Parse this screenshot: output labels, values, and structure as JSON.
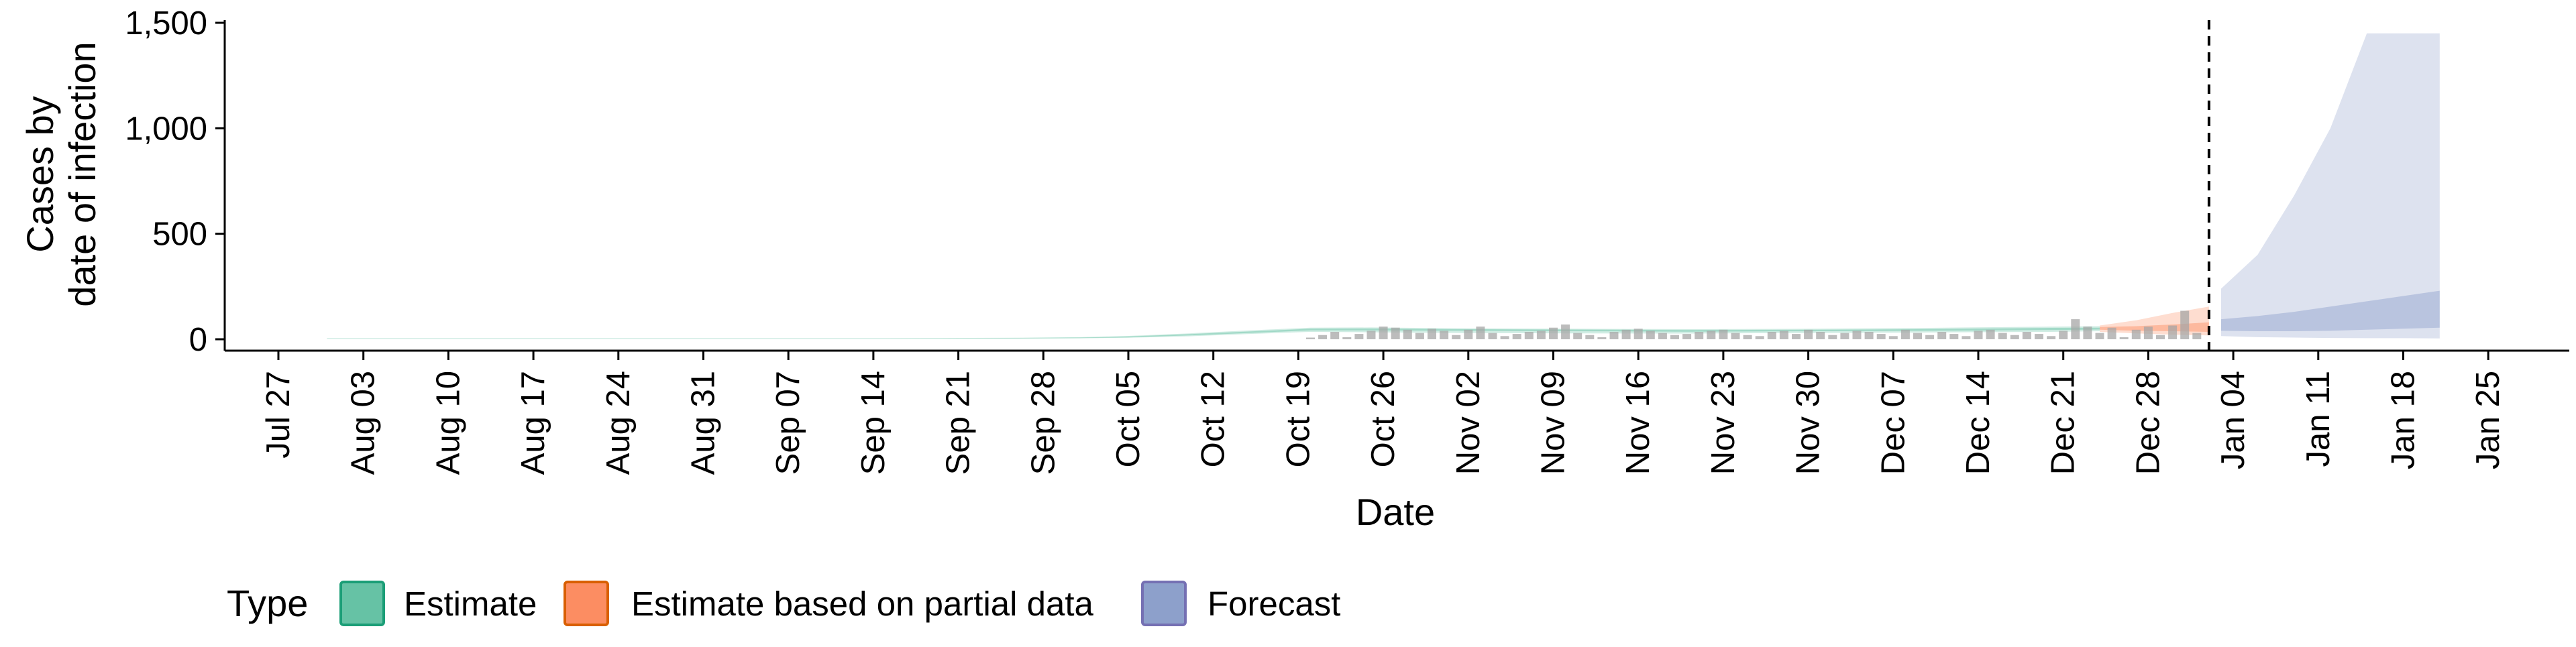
{
  "chart_data": {
    "type": "area",
    "xlabel": "Date",
    "ylabel": [
      "Cases by",
      "date of infection"
    ],
    "ylim": [
      0,
      1500
    ],
    "yticks": [
      0,
      500,
      1000,
      1500
    ],
    "ytick_labels": [
      "0",
      "500",
      "1,000",
      "1,500"
    ],
    "xticks": [
      "2020-07-27",
      "2020-08-03",
      "2020-08-10",
      "2020-08-17",
      "2020-08-24",
      "2020-08-31",
      "2020-09-07",
      "2020-09-14",
      "2020-09-21",
      "2020-09-28",
      "2020-10-05",
      "2020-10-12",
      "2020-10-19",
      "2020-10-26",
      "2020-11-02",
      "2020-11-09",
      "2020-11-16",
      "2020-11-23",
      "2020-11-30",
      "2020-12-07",
      "2020-12-14",
      "2020-12-21",
      "2020-12-28",
      "2021-01-04",
      "2021-01-11",
      "2021-01-18",
      "2021-01-25"
    ],
    "xtick_labels": [
      "Jul 27",
      "Aug 03",
      "Aug 10",
      "Aug 17",
      "Aug 24",
      "Aug 31",
      "Sep 07",
      "Sep 14",
      "Sep 21",
      "Sep 28",
      "Oct 05",
      "Oct 12",
      "Oct 19",
      "Oct 26",
      "Nov 02",
      "Nov 09",
      "Nov 16",
      "Nov 23",
      "Nov 30",
      "Dec 07",
      "Dec 14",
      "Dec 21",
      "Dec 28",
      "Jan 04",
      "Jan 11",
      "Jan 18",
      "Jan 25"
    ],
    "forecast_date": "2021-01-02",
    "grid": false,
    "legend": {
      "title": "Type",
      "position": "bottom",
      "entries": [
        {
          "label": "Estimate",
          "fill": "#66C2A5",
          "stroke": "#1B9E77"
        },
        {
          "label": "Estimate based on partial data",
          "fill": "#FC8D62",
          "stroke": "#D95F02"
        },
        {
          "label": "Forecast",
          "fill": "#8DA0CB",
          "stroke": "#7570B3"
        }
      ]
    },
    "colors": {
      "estimate": "#66C2A5",
      "partial": "#FC8D62",
      "forecast": "#8DA0CB",
      "bars": "#A6A6A6",
      "vline": "#000000"
    },
    "bands": {
      "estimate": {
        "x": [
          "2020-07-31",
          "2020-08-15",
          "2020-09-01",
          "2020-09-15",
          "2020-09-25",
          "2020-10-01",
          "2020-10-05",
          "2020-10-10",
          "2020-10-15",
          "2020-10-20",
          "2020-10-25",
          "2020-11-01",
          "2020-11-10",
          "2020-11-20",
          "2020-12-01",
          "2020-12-10",
          "2020-12-20",
          "2020-12-24"
        ],
        "lower_90": [
          2,
          2,
          2,
          2,
          3,
          4,
          7,
          14,
          25,
          35,
          33,
          30,
          28,
          27,
          30,
          32,
          35,
          38
        ],
        "upper_90": [
          5,
          5,
          5,
          5,
          7,
          10,
          16,
          28,
          42,
          55,
          56,
          52,
          50,
          48,
          50,
          54,
          60,
          62
        ],
        "lower_50": [
          3,
          3,
          3,
          3,
          4,
          6,
          9,
          18,
          30,
          42,
          42,
          40,
          38,
          36,
          38,
          40,
          44,
          46
        ],
        "upper_50": [
          4,
          4,
          4,
          4,
          6,
          8,
          13,
          24,
          37,
          50,
          51,
          48,
          46,
          44,
          45,
          48,
          54,
          55
        ]
      },
      "partial": {
        "x": [
          "2020-12-24",
          "2020-12-27",
          "2020-12-30",
          "2021-01-02"
        ],
        "lower_90": [
          35,
          28,
          22,
          18
        ],
        "upper_90": [
          65,
          90,
          125,
          155
        ],
        "lower_50": [
          45,
          40,
          38,
          35
        ],
        "upper_50": [
          58,
          62,
          70,
          80
        ]
      },
      "forecast": {
        "x": [
          "2021-01-03",
          "2021-01-06",
          "2021-01-09",
          "2021-01-12",
          "2021-01-15",
          "2021-01-18",
          "2021-01-21"
        ],
        "lower_90": [
          15,
          10,
          8,
          6,
          5,
          5,
          4
        ],
        "upper_90": [
          240,
          400,
          680,
          1000,
          1450,
          1450,
          1450
        ],
        "lower_50": [
          40,
          38,
          38,
          40,
          45,
          50,
          55
        ],
        "upper_50": [
          95,
          110,
          130,
          155,
          180,
          205,
          230
        ]
      }
    },
    "reported_cases": {
      "x": [
        "2020-10-20",
        "2020-10-21",
        "2020-10-22",
        "2020-10-23",
        "2020-10-24",
        "2020-10-25",
        "2020-10-26",
        "2020-10-27",
        "2020-10-28",
        "2020-10-29",
        "2020-10-30",
        "2020-10-31",
        "2020-11-01",
        "2020-11-02",
        "2020-11-03",
        "2020-11-04",
        "2020-11-05",
        "2020-11-06",
        "2020-11-07",
        "2020-11-08",
        "2020-11-09",
        "2020-11-10",
        "2020-11-11",
        "2020-11-12",
        "2020-11-13",
        "2020-11-14",
        "2020-11-15",
        "2020-11-16",
        "2020-11-17",
        "2020-11-18",
        "2020-11-19",
        "2020-11-20",
        "2020-11-21",
        "2020-11-22",
        "2020-11-23",
        "2020-11-24",
        "2020-11-25",
        "2020-11-26",
        "2020-11-27",
        "2020-11-28",
        "2020-11-29",
        "2020-11-30",
        "2020-12-01",
        "2020-12-02",
        "2020-12-03",
        "2020-12-04",
        "2020-12-05",
        "2020-12-06",
        "2020-12-07",
        "2020-12-08",
        "2020-12-09",
        "2020-12-10",
        "2020-12-11",
        "2020-12-12",
        "2020-12-13",
        "2020-12-14",
        "2020-12-15",
        "2020-12-16",
        "2020-12-17",
        "2020-12-18",
        "2020-12-19",
        "2020-12-20",
        "2020-12-21",
        "2020-12-22",
        "2020-12-23",
        "2020-12-24",
        "2020-12-25",
        "2020-12-26",
        "2020-12-27",
        "2020-12-28",
        "2020-12-29",
        "2020-12-30",
        "2020-12-31",
        "2021-01-01"
      ],
      "values": [
        8,
        20,
        35,
        10,
        25,
        40,
        60,
        55,
        45,
        30,
        50,
        40,
        20,
        45,
        60,
        30,
        15,
        25,
        35,
        40,
        55,
        70,
        30,
        20,
        10,
        35,
        45,
        50,
        40,
        30,
        20,
        25,
        35,
        40,
        45,
        30,
        20,
        15,
        35,
        40,
        25,
        45,
        35,
        20,
        30,
        40,
        35,
        25,
        15,
        45,
        30,
        20,
        35,
        25,
        15,
        40,
        45,
        30,
        20,
        35,
        25,
        15,
        40,
        95,
        60,
        30,
        55,
        10,
        45,
        60,
        20,
        65,
        135,
        30
      ]
    }
  }
}
